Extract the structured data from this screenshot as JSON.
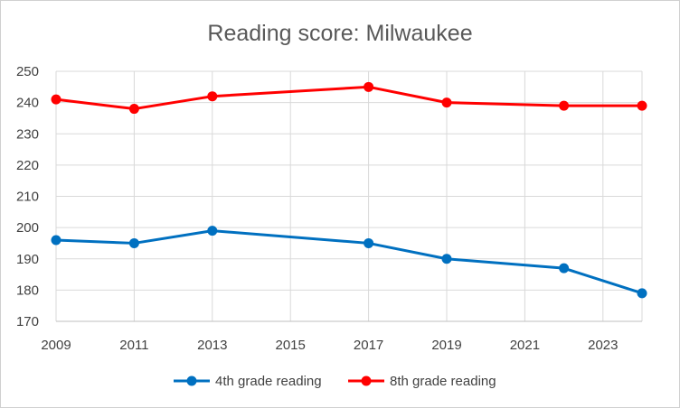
{
  "chart_data": {
    "type": "line",
    "title": "Reading score: Milwaukee",
    "xlabel": "",
    "ylabel": "",
    "xlim": [
      2009,
      2024
    ],
    "ylim": [
      170,
      250
    ],
    "x_ticks": [
      2009,
      2011,
      2013,
      2015,
      2017,
      2019,
      2021,
      2023
    ],
    "y_ticks": [
      170,
      180,
      190,
      200,
      210,
      220,
      230,
      240,
      250
    ],
    "grid": true,
    "legend_position": "bottom",
    "series": [
      {
        "name": "4th grade reading",
        "color": "#0070c0",
        "x": [
          2009,
          2011,
          2013,
          2017,
          2019,
          2022,
          2024
        ],
        "values": [
          196,
          195,
          199,
          195,
          190,
          187,
          179
        ]
      },
      {
        "name": "8th grade reading",
        "color": "#ff0000",
        "x": [
          2009,
          2011,
          2013,
          2017,
          2019,
          2022,
          2024
        ],
        "values": [
          241,
          238,
          242,
          245,
          240,
          239,
          239
        ]
      }
    ]
  }
}
